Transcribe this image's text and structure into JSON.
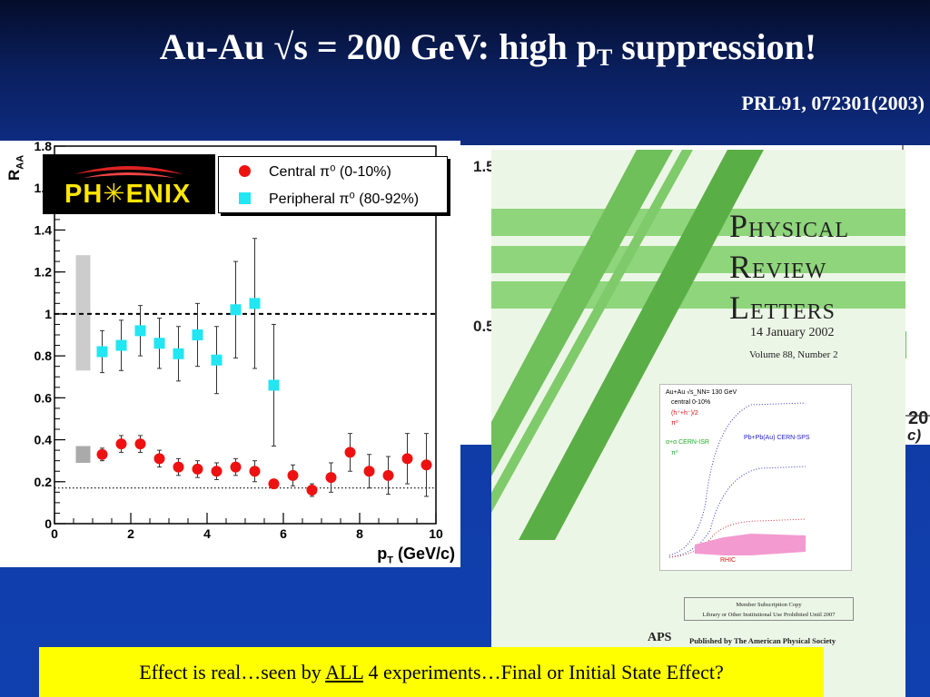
{
  "slide": {
    "title_main": "Au-Au √s = 200 GeV: high p",
    "title_sub": "T",
    "title_tail": " suppression!",
    "reference": "PRL91, 072301(2003)",
    "callout_pre": "Effect is real…seen by ",
    "callout_emph": "ALL",
    "callout_post": " 4 experiments…Final or Initial State Effect?"
  },
  "chart_data": {
    "type": "scatter",
    "title": "",
    "logo": "PH✳ENIX",
    "xlabel": "p",
    "xlabel_sub": "T",
    "xlabel_unit": " (GeV/c)",
    "ylabel": "R",
    "ylabel_sub": "AA",
    "xlim": [
      0,
      10
    ],
    "ylim": [
      0,
      1.8
    ],
    "x_ticks": [
      0,
      2,
      4,
      6,
      8,
      10
    ],
    "y_ticks": [
      0,
      0.2,
      0.4,
      0.6,
      0.8,
      1,
      1.2,
      1.4,
      1.6,
      1.8
    ],
    "x_tick_labels": [
      "0",
      "2",
      "4",
      "6",
      "8",
      "10"
    ],
    "y_tick_labels": [
      "0",
      "0.2",
      "0.4",
      "0.6",
      "0.8",
      "1",
      "1.2",
      "1.4",
      "1.6",
      "1.8"
    ],
    "grid": false,
    "legend_position": "top-right",
    "reference_lines": [
      {
        "y": 1.0,
        "style": "dashed"
      },
      {
        "y": 0.17,
        "style": "dotted"
      }
    ],
    "systematic_bands": [
      {
        "x": 0.75,
        "ylow": 0.73,
        "yhigh": 1.28,
        "color": "#cccccc"
      },
      {
        "x": 0.75,
        "ylow": 0.29,
        "yhigh": 0.37,
        "color": "#aaaaaa"
      }
    ],
    "series": [
      {
        "name": "Central π⁰ (0-10%)",
        "marker": "circle",
        "color": "#ee1111",
        "points": [
          {
            "x": 1.25,
            "y": 0.33,
            "err": 0.03
          },
          {
            "x": 1.75,
            "y": 0.38,
            "err": 0.04
          },
          {
            "x": 2.25,
            "y": 0.38,
            "err": 0.04
          },
          {
            "x": 2.75,
            "y": 0.31,
            "err": 0.04
          },
          {
            "x": 3.25,
            "y": 0.27,
            "err": 0.04
          },
          {
            "x": 3.75,
            "y": 0.26,
            "err": 0.04
          },
          {
            "x": 4.25,
            "y": 0.25,
            "err": 0.04
          },
          {
            "x": 4.75,
            "y": 0.27,
            "err": 0.04
          },
          {
            "x": 5.25,
            "y": 0.25,
            "err": 0.05
          },
          {
            "x": 5.75,
            "y": 0.19,
            "err": 0.02
          },
          {
            "x": 6.25,
            "y": 0.23,
            "err": 0.05
          },
          {
            "x": 6.75,
            "y": 0.16,
            "err": 0.03
          },
          {
            "x": 7.25,
            "y": 0.22,
            "err": 0.07
          },
          {
            "x": 7.75,
            "y": 0.34,
            "err": 0.09
          },
          {
            "x": 8.25,
            "y": 0.25,
            "err": 0.08
          },
          {
            "x": 8.75,
            "y": 0.23,
            "err": 0.09
          },
          {
            "x": 9.25,
            "y": 0.31,
            "err": 0.12
          },
          {
            "x": 9.75,
            "y": 0.28,
            "err": 0.15
          }
        ]
      },
      {
        "name": "Peripheral π⁰ (80-92%)",
        "marker": "square",
        "color": "#22e6f2",
        "points": [
          {
            "x": 1.25,
            "y": 0.82,
            "err": 0.1
          },
          {
            "x": 1.75,
            "y": 0.85,
            "err": 0.12
          },
          {
            "x": 2.25,
            "y": 0.92,
            "err": 0.12
          },
          {
            "x": 2.75,
            "y": 0.86,
            "err": 0.12
          },
          {
            "x": 3.25,
            "y": 0.81,
            "err": 0.13
          },
          {
            "x": 3.75,
            "y": 0.9,
            "err": 0.15
          },
          {
            "x": 4.25,
            "y": 0.78,
            "err": 0.16
          },
          {
            "x": 4.75,
            "y": 1.02,
            "err": 0.23
          },
          {
            "x": 5.25,
            "y": 1.05,
            "err": 0.31
          },
          {
            "x": 5.75,
            "y": 0.66,
            "err": 0.29
          }
        ]
      }
    ]
  },
  "background_plot": {
    "y_ticks": [
      "1.5",
      "0.5"
    ],
    "x_tick": "20",
    "unit_fragment": "c)"
  },
  "cover": {
    "title_p": "P",
    "title_p_rest": "HYSICAL",
    "title_r": "R",
    "title_r_rest": "EVIEW",
    "title_l": "L",
    "title_l_rest": "ETTERS",
    "date": "14 January 2002",
    "volume": "Volume 88, Number 2",
    "inset_header": "Au+Au √s_NN= 130 GeV",
    "inset_central": "central 0-10%",
    "inset_h": "(h⁺+h⁻)/2",
    "inset_pi0": "π⁰",
    "inset_alpha": "α+α CERN-ISR",
    "inset_pi0b": "π⁰",
    "inset_sps": "Pb+Pb(Au) CERN-SPS",
    "inset_rhic": "RHIC",
    "member_line1": "Member Subscription Copy",
    "member_line2": "Library or Other Institutional Use Prohibited Until 2007",
    "aps": "APS",
    "published": "Published by The American Physical Society",
    "colors": {
      "stripe": "#6fbf5a",
      "stripe_light": "#9bd98a"
    }
  }
}
